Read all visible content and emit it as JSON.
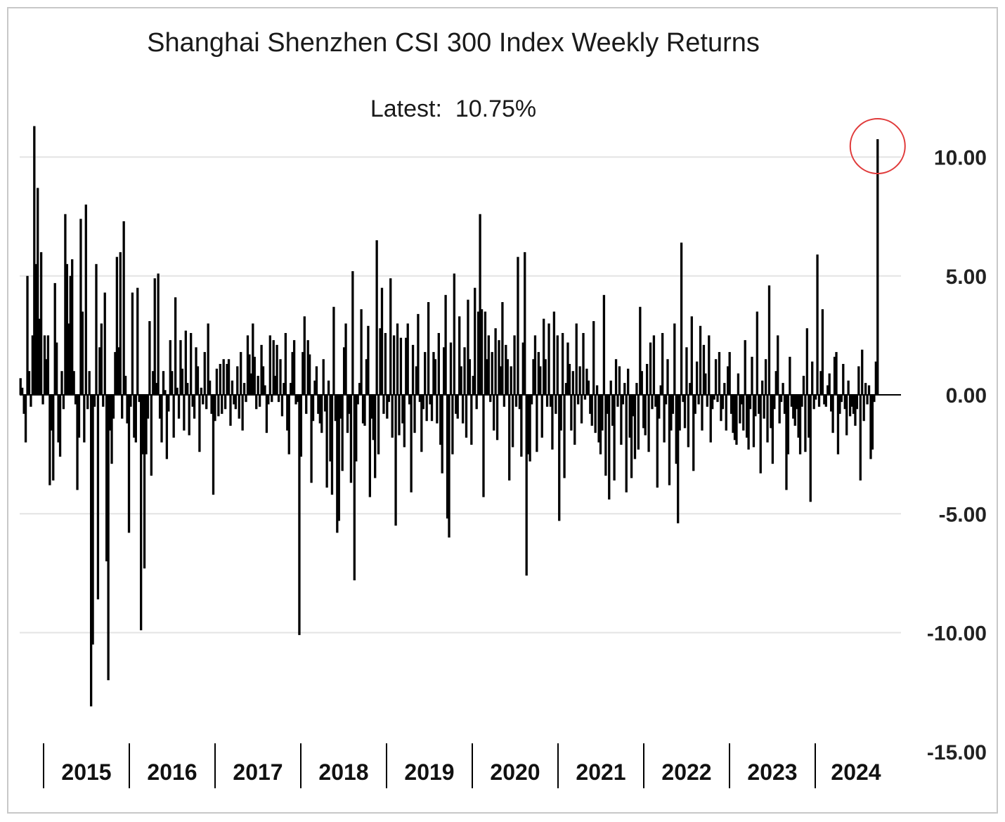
{
  "chart_data": {
    "type": "bar",
    "title": "Shanghai Shenzhen CSI 300 Index Weekly Returns",
    "annotation": {
      "label": "Latest:",
      "value": "10.75%"
    },
    "xlabel": "",
    "ylabel": "",
    "ylim": [
      -15,
      12
    ],
    "y_ticks": [
      "10.00",
      "5.00",
      "0.00",
      "-5.00",
      "-10.00",
      "-15.00"
    ],
    "y_tick_values": [
      10,
      5,
      0,
      -5,
      -10,
      -15
    ],
    "year_labels": [
      "2015",
      "2016",
      "2017",
      "2018",
      "2019",
      "2020",
      "2021",
      "2022",
      "2023",
      "2024"
    ],
    "grid": "horizontal",
    "bar_color": "#000000",
    "highlight_color": "#e03a3a",
    "highlight": "last bar circled",
    "series": [
      {
        "values": [
          0.7,
          0.3,
          -0.8,
          -2,
          5,
          1,
          -0.5,
          2.5,
          11.3,
          5.5,
          8.7,
          3.2,
          6,
          -0.4,
          2.5,
          1.5,
          2.5,
          -3.8,
          -1.5,
          -3.6,
          4.7,
          2.2,
          -2,
          -2.6,
          1,
          -0.6,
          7.6,
          5.5,
          3,
          5,
          5.7,
          1,
          -0.4,
          -4,
          -1.8,
          7.4,
          3.5,
          -2,
          8,
          -0.6,
          1,
          -13.1,
          -10.5,
          -0.5,
          5.5,
          -8.6,
          2,
          3,
          -0.5,
          4.3,
          -7,
          -12,
          -1.5,
          -2.9,
          -1,
          1.8,
          5.8,
          2,
          6,
          -1,
          7.3,
          0.8,
          -1.2,
          -5.8,
          -0.5,
          4.3,
          -1.8,
          -2,
          4.5,
          -0.3,
          -9.9,
          -2.5,
          -7.3,
          -2.5,
          -1,
          3.1,
          -3.4,
          1,
          4.9,
          0.5,
          5.1,
          -1,
          -2,
          1,
          0.2,
          -2.7,
          -0.7,
          2.3,
          1,
          -1.8,
          4.1,
          0.3,
          -1,
          2.3,
          1.1,
          -1.5,
          2.7,
          0.5,
          -1.7,
          2.6,
          -0.5,
          -1,
          2,
          1.2,
          -2.4,
          0.3,
          -0.4,
          1.8,
          -0.6,
          3,
          0.6,
          -0.8,
          -4.2,
          -1.1,
          1.1,
          -0.9,
          1.3,
          -0.8,
          1.5,
          -0.6,
          1.3,
          1.5,
          -1.3,
          0.6,
          -0.4,
          -0.6,
          1.2,
          -1,
          1.8,
          -1.5,
          0.5,
          -0.3,
          2.5,
          1.7,
          0.9,
          3,
          1.6,
          -0.6,
          0.8,
          -0.5,
          2.1,
          1.2,
          0.4,
          -1.6,
          -0.4,
          2.5,
          -0.3,
          2.3,
          0.8,
          2.1,
          -0.3,
          1.5,
          -0.9,
          0.5,
          2.6,
          -1.5,
          -2.5,
          0.5,
          1.8,
          2.3,
          -0.4,
          -0.3,
          -10.1,
          -2.6,
          1.8,
          3.3,
          -0.8,
          2.3,
          1.7,
          -3.7,
          -1.1,
          0.6,
          1.2,
          -0.8,
          -1.2,
          -1.6,
          1.5,
          -0.7,
          -3.9,
          0.6,
          -2.8,
          -4.2,
          3.7,
          -1.1,
          -5.8,
          -5.3,
          -1,
          -3.2,
          2,
          3,
          -1.6,
          -0.8,
          -3.7,
          5.2,
          -7.8,
          -2.8,
          -0.4,
          0.5,
          3.6,
          -1.2,
          -1.3,
          1.5,
          2.9,
          -4.3,
          -1,
          -1.9,
          -3.5,
          6.5,
          -2.5,
          2.8,
          4.5,
          -0.8,
          2.6,
          -1,
          -0.3,
          4.9,
          -1.8,
          2.5,
          -5.5,
          3,
          -1.7,
          2.4,
          -1.2,
          -2.2,
          2.4,
          3,
          -0.4,
          -4.1,
          2.1,
          -1.6,
          1.2,
          3.4,
          -0.3,
          -2.4,
          -0.6,
          1.8,
          -1.1,
          3.9,
          -0.4,
          -1.1,
          1.8,
          1.5,
          -1.2,
          2.6,
          -2.1,
          -3.3,
          2,
          4.2,
          -5.2,
          -6,
          2.2,
          -2.5,
          5.1,
          -0.8,
          -1,
          3.3,
          1.2,
          -1.2,
          2,
          -1.8,
          4,
          1.5,
          -2.1,
          0.8,
          4.5,
          -0.6,
          3.5,
          7.6,
          3.6,
          -4.3,
          3.5,
          1.5,
          2.5,
          -0.3,
          1.8,
          -1.5,
          2.8,
          -1.9,
          2.3,
          1.2,
          3.9,
          -0.5,
          2.1,
          1.5,
          -3.6,
          1.2,
          -2.2,
          2.5,
          -0.5,
          5.8,
          -0.6,
          -2.6,
          2.2,
          6,
          -7.6,
          -2.5,
          -2.8,
          -0.4,
          1.5,
          2.5,
          -2.4,
          1.8,
          1.2,
          -1.8,
          3.2,
          1.5,
          -0.5,
          3,
          -0.5,
          -2.3,
          3.5,
          -0.8,
          2.5,
          -5.3,
          -1.5,
          2.6,
          -3.5,
          0.5,
          2.2,
          1.3,
          -1.5,
          1,
          -2.1,
          3,
          -0.4,
          1.2,
          -1.2,
          2.6,
          -0.2,
          1.1,
          0.6,
          -0.8,
          -1.3,
          3.1,
          -1.6,
          0.4,
          -2,
          -2.5,
          -1.5,
          4.2,
          -3.4,
          -0.8,
          -4.4,
          0.6,
          -1.3,
          -3.6,
          1.5,
          -0.5,
          1.2,
          -2.1,
          -0.4,
          0.5,
          -4.1,
          1.1,
          -1.8,
          -3.5,
          -0.9,
          -2.7,
          0.5,
          -2.3,
          3.7,
          1,
          -1.4,
          -1.7,
          1.3,
          -2.4,
          2.2,
          -0.6,
          2.5,
          -0.5,
          -3.9,
          -1,
          0.4,
          2.6,
          -2,
          -0.4,
          1.5,
          -3.8,
          -1.5,
          -0.8,
          3,
          -2.9,
          -5.4,
          -1.5,
          6.4,
          -0.3,
          -1.4,
          2,
          -2.2,
          0.5,
          3.3,
          -3.2,
          -0.8,
          1.4,
          -0.4,
          2.9,
          -1.5,
          2.1,
          0.9,
          -0.5,
          2.5,
          -2,
          -0.6,
          -0.2,
          1.5,
          -0.3,
          1.8,
          -1.1,
          -0.6,
          0.5,
          -1.5,
          1.2,
          1.8,
          -0.8,
          -1.6,
          -1.9,
          -2.1,
          0.9,
          -1.2,
          -0.4,
          -1.5,
          2.3,
          -1.8,
          -2.3,
          -0.6,
          1.6,
          -2.2,
          -0.9,
          3.5,
          -0.8,
          -3.3,
          0.6,
          -1,
          1.5,
          -2,
          4.6,
          -1.4,
          -2.9,
          -0.6,
          1,
          2.5,
          -1.2,
          -0.3,
          0.5,
          -0.8,
          -4,
          -2.5,
          1.6,
          -0.5,
          -1,
          -1.3,
          -0.6,
          -1.8,
          -2.5,
          -0.5,
          0.8,
          -2.4,
          2.8,
          -1.8,
          -4.5,
          1.4,
          -0.6,
          -0.2,
          5.9,
          -0.5,
          1,
          3.6,
          -0.4,
          -0.5,
          0.4,
          0.9,
          -0.7,
          -1.6,
          1.6,
          1.8,
          -2.5,
          -0.8,
          -0.3,
          1.3,
          -0.6,
          -1.7,
          0.6,
          -0.9,
          -0.5,
          -0.8,
          -1.3,
          -0.6,
          1.2,
          -3.6,
          1.9,
          -1.1,
          0.5,
          -0.4,
          0.4,
          -2.7,
          -2.3,
          -0.3,
          1.4,
          10.75
        ]
      }
    ]
  }
}
